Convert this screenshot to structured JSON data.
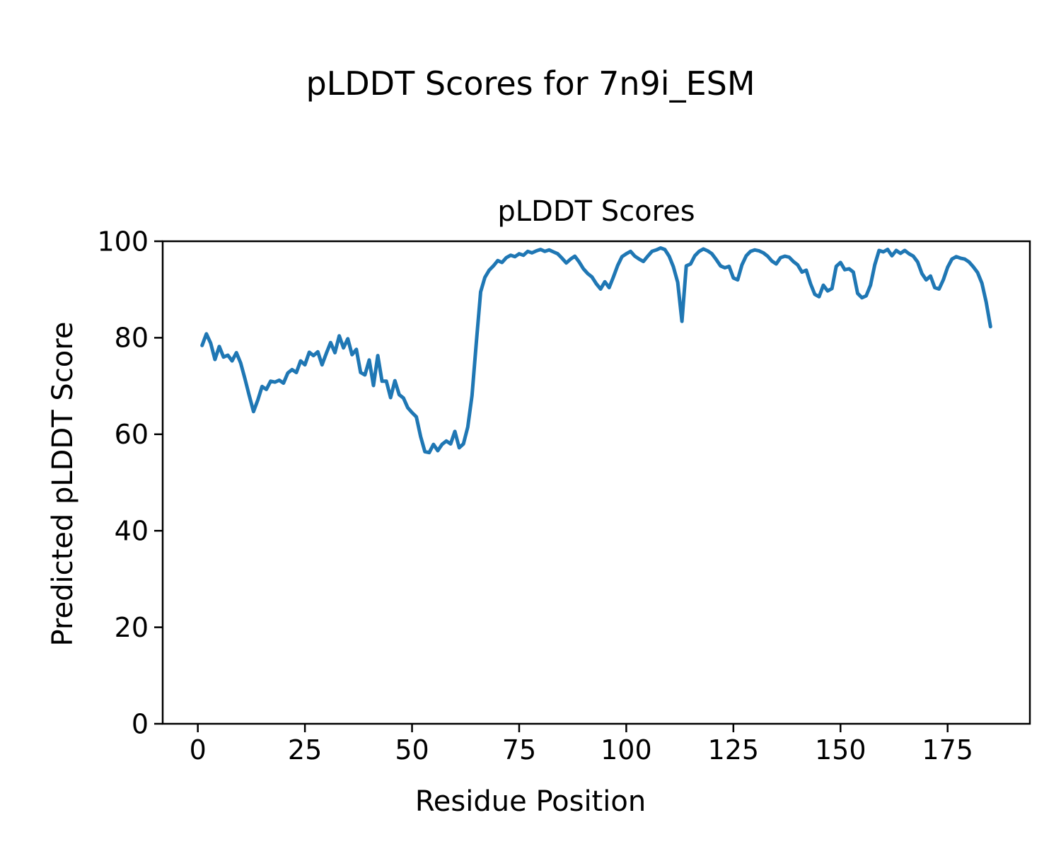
{
  "figure": {
    "suptitle": "pLDDT Scores for 7n9i_ESM"
  },
  "chart_data": {
    "type": "line",
    "title": "pLDDT Scores",
    "xlabel": "Residue Position",
    "ylabel": "Predicted pLDDT Score",
    "legend": null,
    "grid": false,
    "line_color": "#1f77b4",
    "axis_color": "#000000",
    "xlim": [
      -8.2,
      194.2
    ],
    "ylim": [
      0,
      100
    ],
    "xticks": [
      0,
      25,
      50,
      75,
      100,
      125,
      150,
      175
    ],
    "yticks": [
      0,
      20,
      40,
      60,
      80,
      100
    ],
    "x_start": 1,
    "x_step": 1,
    "values": [
      78.4,
      80.8,
      78.9,
      75.5,
      78.2,
      76.0,
      76.4,
      75.2,
      76.9,
      74.8,
      71.5,
      68.0,
      64.7,
      67.1,
      69.9,
      69.3,
      71.0,
      70.8,
      71.2,
      70.6,
      72.7,
      73.4,
      72.8,
      75.2,
      74.4,
      77.0,
      76.3,
      77.1,
      74.4,
      76.8,
      79.0,
      76.9,
      80.4,
      77.9,
      79.8,
      76.5,
      77.6,
      72.8,
      72.3,
      75.4,
      70.1,
      76.3,
      71.0,
      71.0,
      67.6,
      71.1,
      68.2,
      67.5,
      65.5,
      64.5,
      63.6,
      59.5,
      56.4,
      56.2,
      57.9,
      56.6,
      57.9,
      58.6,
      58.0,
      60.6,
      57.2,
      58.0,
      61.5,
      68.0,
      79.0,
      89.5,
      92.5,
      94.0,
      94.9,
      96.0,
      95.6,
      96.6,
      97.1,
      96.8,
      97.4,
      97.1,
      97.9,
      97.6,
      98.0,
      98.3,
      97.9,
      98.2,
      97.8,
      97.4,
      96.5,
      95.5,
      96.3,
      96.9,
      95.7,
      94.3,
      93.3,
      92.6,
      91.2,
      90.1,
      91.6,
      90.4,
      92.6,
      95.0,
      96.8,
      97.4,
      97.9,
      96.9,
      96.3,
      95.8,
      96.9,
      97.9,
      98.2,
      98.6,
      98.3,
      96.9,
      94.7,
      91.5,
      83.4,
      94.9,
      95.3,
      97.0,
      97.9,
      98.4,
      98.0,
      97.4,
      96.2,
      94.9,
      94.5,
      94.8,
      92.4,
      92.0,
      95.1,
      97.0,
      97.9,
      98.2,
      98.0,
      97.6,
      96.9,
      95.9,
      95.3,
      96.6,
      96.9,
      96.7,
      95.8,
      95.1,
      93.6,
      94.0,
      91.2,
      89.0,
      88.5,
      90.9,
      89.7,
      90.2,
      94.8,
      95.6,
      94.1,
      94.3,
      93.6,
      89.2,
      88.3,
      88.7,
      90.9,
      95.1,
      98.1,
      97.8,
      98.3,
      97.0,
      98.1,
      97.5,
      98.1,
      97.4,
      96.9,
      95.7,
      93.3,
      92.0,
      92.8,
      90.4,
      90.1,
      92.0,
      94.6,
      96.3,
      96.8,
      96.5,
      96.3,
      95.7,
      94.7,
      93.5,
      91.3,
      87.4,
      82.3
    ]
  }
}
